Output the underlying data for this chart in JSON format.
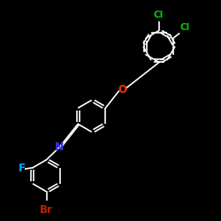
{
  "background_color": "#000000",
  "bond_color": "#ffffff",
  "atom_colors": {
    "Cl": "#00cc00",
    "O": "#ff3300",
    "N": "#3333ff",
    "F": "#00aaff",
    "Br": "#bb2200"
  },
  "bond_width": 1.2,
  "font_size": 7.5,
  "fig_size": [
    2.5,
    2.5
  ],
  "dpi": 100,
  "xlim": [
    0,
    10
  ],
  "ylim": [
    0,
    10
  ]
}
